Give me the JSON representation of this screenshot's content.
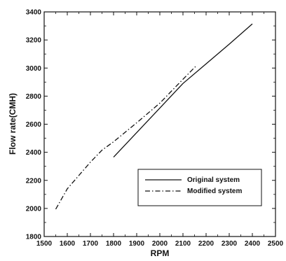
{
  "chart_data": {
    "type": "line",
    "xlabel": "RPM",
    "ylabel": "Flow rate(CMH)",
    "xlim": [
      1500,
      2500
    ],
    "ylim": [
      1800,
      3400
    ],
    "xticks": [
      "1500",
      "1600",
      "1700",
      "1800",
      "1900",
      "2000",
      "2100",
      "2200",
      "2300",
      "2400",
      "2500"
    ],
    "yticks": [
      "1800",
      "2000",
      "2200",
      "2400",
      "2600",
      "2800",
      "3000",
      "3200",
      "3400"
    ],
    "grid": false,
    "legend_position": "bottom-right",
    "series": [
      {
        "name": "Original system",
        "style": "solid",
        "color": "#111111",
        "x": [
          1800,
          2000,
          2100,
          2200,
          2300,
          2400
        ],
        "y": [
          2365,
          2715,
          2890,
          3030,
          3170,
          3315
        ]
      },
      {
        "name": "Modified system",
        "style": "dashdot",
        "color": "#111111",
        "x": [
          1550,
          1600,
          1700,
          1750,
          1800,
          1900,
          2000,
          2100,
          2160
        ],
        "y": [
          1995,
          2140,
          2330,
          2415,
          2475,
          2610,
          2750,
          2920,
          3020
        ]
      }
    ]
  }
}
